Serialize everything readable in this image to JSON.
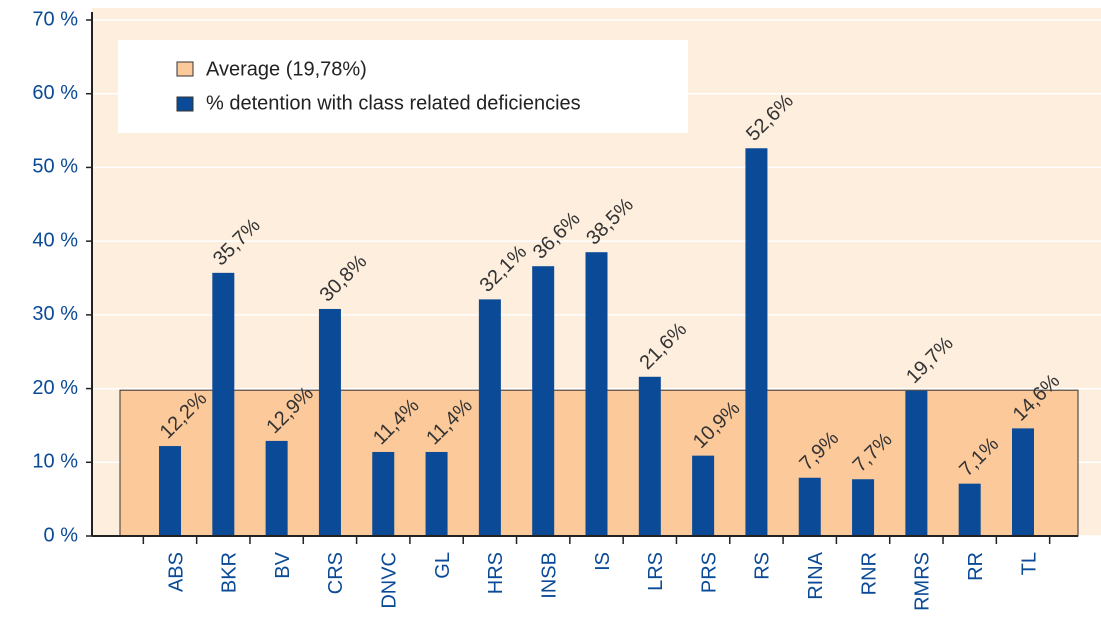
{
  "chart_data": {
    "type": "bar",
    "categories": [
      "ABS",
      "BKR",
      "BV",
      "CRS",
      "DNVC",
      "GL",
      "HRS",
      "INSB",
      "IS",
      "LRS",
      "PRS",
      "RS",
      "RINA",
      "RNR",
      "RMRS",
      "RR",
      "TL"
    ],
    "series": [
      {
        "name": "% detention with class related deficiencies",
        "color": "#0a4a96",
        "values": [
          12.2,
          35.7,
          12.9,
          30.8,
          11.4,
          11.4,
          32.1,
          36.6,
          38.5,
          21.6,
          10.9,
          52.6,
          7.9,
          7.7,
          19.7,
          7.1,
          14.6
        ],
        "value_labels": [
          "12,2%",
          "35,7%",
          "12,9%",
          "30,8%",
          "11,4%",
          "11,4%",
          "32,1%",
          "36,6%",
          "38,5%",
          "21,6%",
          "10,9%",
          "52,6%",
          "7,9%",
          "7,7%",
          "19,7%",
          "7,1%",
          "14,6%"
        ]
      }
    ],
    "average": {
      "name": "Average (19,78%)",
      "value": 19.78,
      "color": "#fcc99a"
    },
    "ylim": [
      0,
      70
    ],
    "yticks": [
      {
        "value": 0,
        "label": "0 %"
      },
      {
        "value": 10,
        "label": "10 %"
      },
      {
        "value": 20,
        "label": "20 %"
      },
      {
        "value": 30,
        "label": "30 %"
      },
      {
        "value": 40,
        "label": "40 %"
      },
      {
        "value": 50,
        "label": "50 %"
      },
      {
        "value": 60,
        "label": "60 %"
      },
      {
        "value": 70,
        "label": "70 %"
      }
    ],
    "grid": true,
    "legend": "top-left"
  }
}
